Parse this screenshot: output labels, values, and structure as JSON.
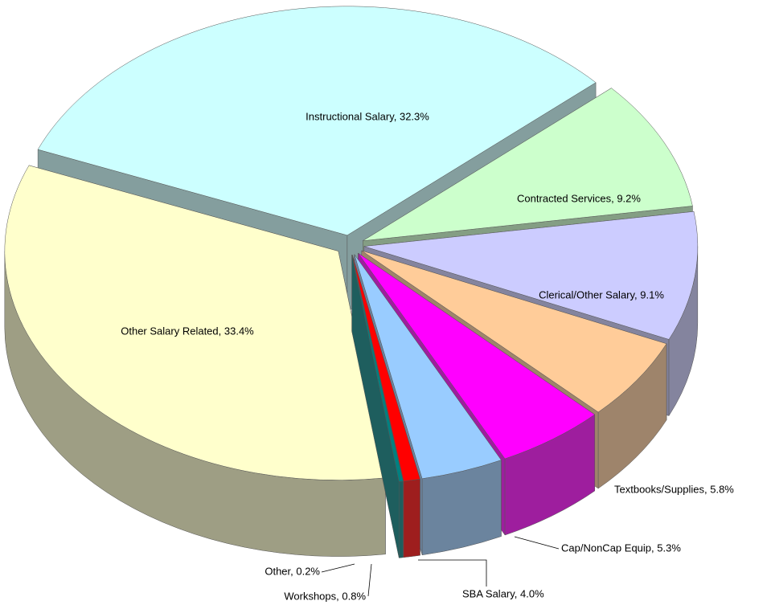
{
  "chart_data": {
    "type": "pie",
    "values": [
      32.3,
      9.2,
      9.1,
      5.8,
      5.3,
      4.0,
      0.8,
      0.2,
      33.4
    ],
    "value_labels": [
      "Instructional Salary, 32.3%",
      "Contracted Services, 9.2%",
      "Clerical/Other Salary, 9.1%",
      "Textbooks/Supplies, 5.8%",
      "Cap/NonCap Equip, 5.3%",
      "SBA Salary, 4.0%",
      "Workshops, 0.8%",
      "Other, 0.2%",
      "Other Salary Related, 33.4%"
    ],
    "colors": [
      "#ccffff",
      "#ccffcc",
      "#ccccff",
      "#ffcc99",
      "#ff00ff",
      "#99ccff",
      "#ff0000",
      "#008080",
      "#ffffcc"
    ]
  }
}
